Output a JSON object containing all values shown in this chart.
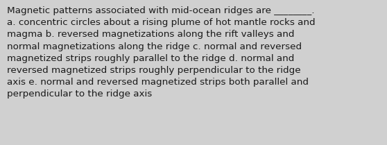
{
  "text": "Magnetic patterns associated with mid-ocean ridges are ________.\na. concentric circles about a rising plume of hot mantle rocks and\nmagma b. reversed magnetizations along the rift valleys and\nnormal magnetizations along the ridge c. normal and reversed\nmagnetized strips roughly parallel to the ridge d. normal and\nreversed magnetized strips roughly perpendicular to the ridge\naxis e. normal and reversed magnetized strips both parallel and\nperpendicular to the ridge axis",
  "background_color": "#d0d0d0",
  "text_color": "#1a1a1a",
  "font_size": 9.7,
  "fig_width": 5.58,
  "fig_height": 2.09,
  "dpi": 100
}
